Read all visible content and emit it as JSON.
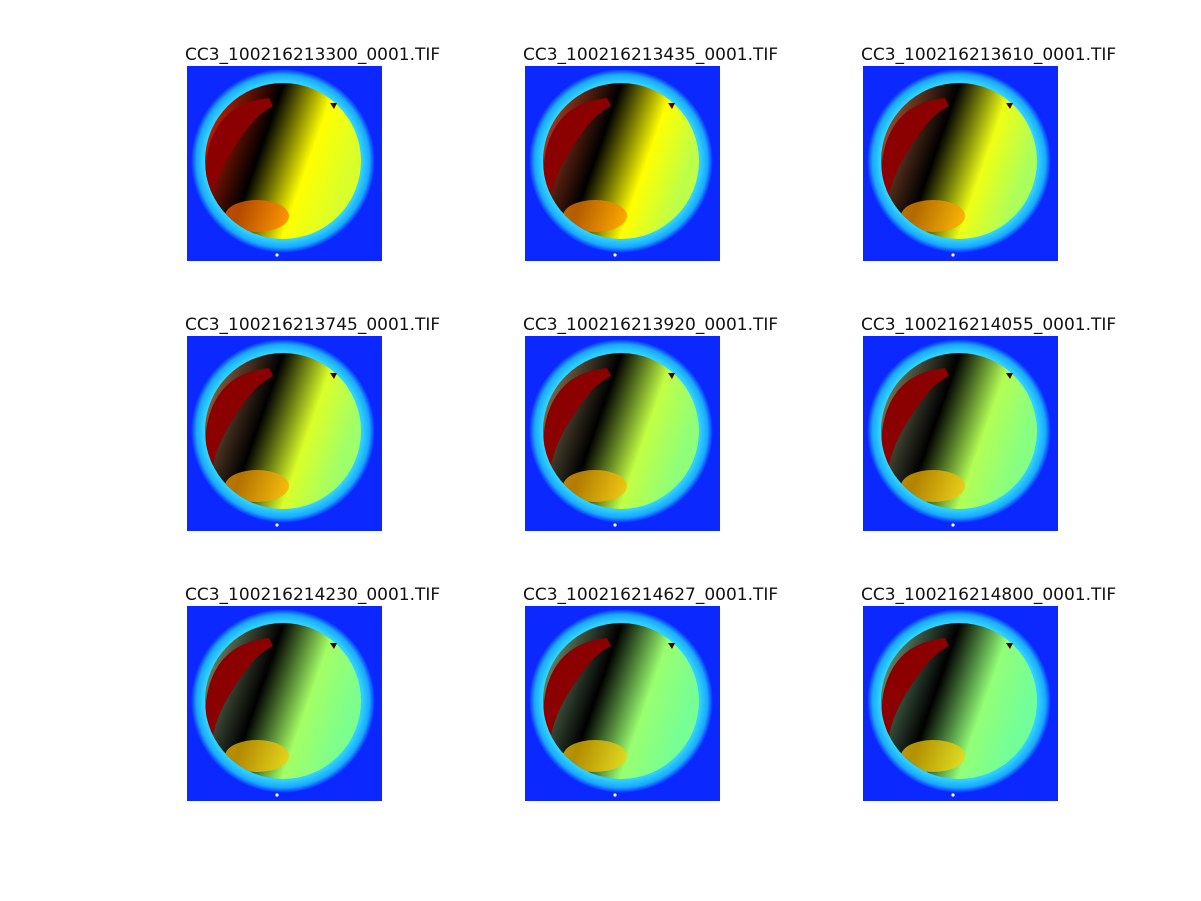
{
  "figure": {
    "background": "#ffffff",
    "panels": [
      {
        "title": "CC3_100216213300_0001.TIF",
        "warmth": 1.0
      },
      {
        "title": "CC3_100216213435_0001.TIF",
        "warmth": 0.82
      },
      {
        "title": "CC3_100216213610_0001.TIF",
        "warmth": 0.7
      },
      {
        "title": "CC3_100216213745_0001.TIF",
        "warmth": 0.62
      },
      {
        "title": "CC3_100216213920_0001.TIF",
        "warmth": 0.52
      },
      {
        "title": "CC3_100216214055_0001.TIF",
        "warmth": 0.46
      },
      {
        "title": "CC3_100216214230_0001.TIF",
        "warmth": 0.4
      },
      {
        "title": "CC3_100216214627_0001.TIF",
        "warmth": 0.36
      },
      {
        "title": "CC3_100216214800_0001.TIF",
        "warmth": 0.33
      }
    ],
    "colors": {
      "outside_sky": "#0a28ff",
      "rim": "#2fd2ff",
      "sun_side_dark": "#8b0000",
      "mid": "#ffff00",
      "hot": "#ff2a00",
      "cool": "#40ffd0"
    }
  }
}
